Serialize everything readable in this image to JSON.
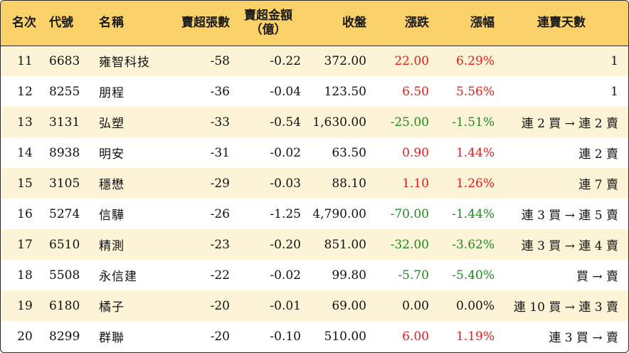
{
  "headers": {
    "rank": "名次",
    "code": "代號",
    "name": "名稱",
    "lots": "賣超張數",
    "amount_line1": "賣超金額",
    "amount_line2": "（億）",
    "close": "收盤",
    "change": "漲跌",
    "pct": "漲幅",
    "streak": "連賣天數"
  },
  "rows": [
    {
      "rank": "11",
      "code": "6683",
      "name": "雍智科技",
      "lots": "-58",
      "amount": "-0.22",
      "close": "372.00",
      "change": "22.00",
      "pct": "6.29%",
      "dir": "up",
      "streak": "1"
    },
    {
      "rank": "12",
      "code": "8255",
      "name": "朋程",
      "lots": "-36",
      "amount": "-0.04",
      "close": "123.50",
      "change": "6.50",
      "pct": "5.56%",
      "dir": "up",
      "streak": "1"
    },
    {
      "rank": "13",
      "code": "3131",
      "name": "弘塑",
      "lots": "-33",
      "amount": "-0.54",
      "close": "1,630.00",
      "change": "-25.00",
      "pct": "-1.51%",
      "dir": "down",
      "streak": "連 2 買 → 連 2 賣"
    },
    {
      "rank": "14",
      "code": "8938",
      "name": "明安",
      "lots": "-31",
      "amount": "-0.02",
      "close": "63.50",
      "change": "0.90",
      "pct": "1.44%",
      "dir": "up",
      "streak": "連 2 賣"
    },
    {
      "rank": "15",
      "code": "3105",
      "name": "穩懋",
      "lots": "-29",
      "amount": "-0.03",
      "close": "88.10",
      "change": "1.10",
      "pct": "1.26%",
      "dir": "up",
      "streak": "連 7 賣"
    },
    {
      "rank": "16",
      "code": "5274",
      "name": "信驊",
      "lots": "-26",
      "amount": "-1.25",
      "close": "4,790.00",
      "change": "-70.00",
      "pct": "-1.44%",
      "dir": "down",
      "streak": "連 3 買 → 連 5 賣"
    },
    {
      "rank": "17",
      "code": "6510",
      "name": "精測",
      "lots": "-23",
      "amount": "-0.20",
      "close": "851.00",
      "change": "-32.00",
      "pct": "-3.62%",
      "dir": "down",
      "streak": "連 3 買 → 連 4 賣"
    },
    {
      "rank": "18",
      "code": "5508",
      "name": "永信建",
      "lots": "-22",
      "amount": "-0.02",
      "close": "99.80",
      "change": "-5.70",
      "pct": "-5.40%",
      "dir": "down",
      "streak": "買 → 賣"
    },
    {
      "rank": "19",
      "code": "6180",
      "name": "橘子",
      "lots": "-20",
      "amount": "-0.01",
      "close": "69.00",
      "change": "0.00",
      "pct": "0.00%",
      "dir": "flat",
      "streak": "連 10 買 → 連 3 賣"
    },
    {
      "rank": "20",
      "code": "8299",
      "name": "群聯",
      "lots": "-20",
      "amount": "-0.10",
      "close": "510.00",
      "change": "6.00",
      "pct": "1.19%",
      "dir": "up",
      "streak": "連 3 買 → 賣"
    }
  ],
  "colors": {
    "header_bg": "#fbd16a",
    "alt_row_bg": "#fdf3d6",
    "up": "#e0201f",
    "down": "#1f8a1f"
  }
}
